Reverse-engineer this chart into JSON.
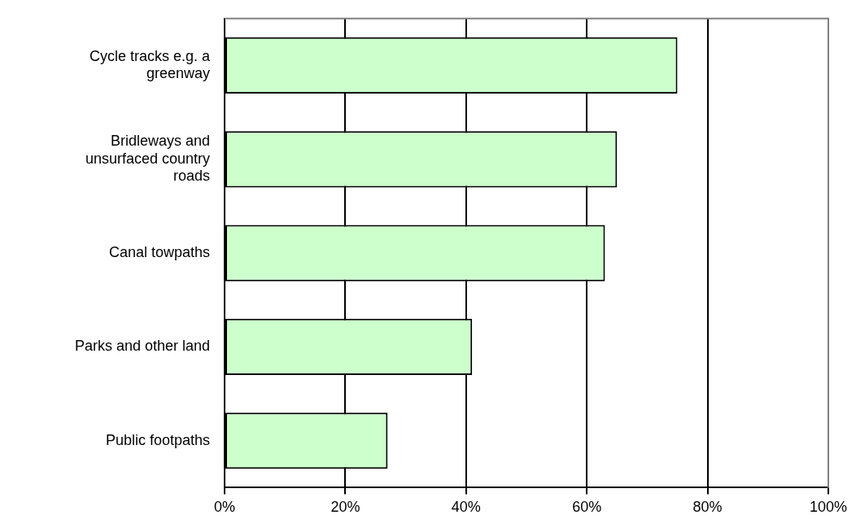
{
  "chart_data": {
    "type": "bar",
    "orientation": "horizontal",
    "categories": [
      "Cycle tracks e.g. a greenway",
      "Bridleways and unsurfaced country roads",
      "Canal towpaths",
      "Parks and other land",
      "Public footpaths"
    ],
    "values": [
      75,
      65,
      63,
      41,
      27
    ],
    "color": "#ccffcc",
    "xlim": [
      0,
      100
    ],
    "xticks": [
      {
        "value": 0,
        "label": "0%"
      },
      {
        "value": 20,
        "label": "20%"
      },
      {
        "value": 40,
        "label": "40%"
      },
      {
        "value": 60,
        "label": "60%"
      },
      {
        "value": 80,
        "label": "80%"
      },
      {
        "value": 100,
        "label": "100%"
      }
    ],
    "grid": "x",
    "legend": false
  }
}
